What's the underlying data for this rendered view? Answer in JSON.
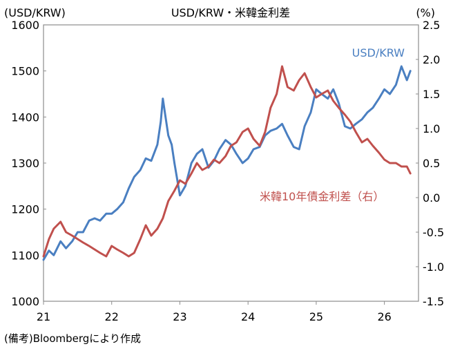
{
  "chart_data": {
    "type": "line",
    "title": "USD/KRW・米韓金利差",
    "left_axis_unit": "(USD/KRW)",
    "right_axis_unit": "(%)",
    "source_note": "(備考)Bloombergにより作成",
    "x_ticks": [
      "21",
      "22",
      "23",
      "24",
      "25",
      "26"
    ],
    "x_range": [
      2021.0,
      2026.5
    ],
    "y_left": {
      "range": [
        1000,
        1600
      ],
      "ticks": [
        "1000",
        "1100",
        "1200",
        "1300",
        "1400",
        "1500",
        "1600"
      ]
    },
    "y_right": {
      "range": [
        -1.5,
        2.5
      ],
      "ticks": [
        "-1.5",
        "-1.0",
        "-0.5",
        "0.0",
        "0.5",
        "1.0",
        "1.5",
        "2.0",
        "2.5"
      ]
    },
    "grid": false,
    "series": [
      {
        "name": "USD/KRW",
        "axis": "left",
        "color": "#4a7fc1",
        "x": [
          2021.0,
          2021.08,
          2021.15,
          2021.25,
          2021.33,
          2021.42,
          2021.5,
          2021.58,
          2021.67,
          2021.75,
          2021.83,
          2021.92,
          2022.0,
          2022.08,
          2022.17,
          2022.25,
          2022.33,
          2022.42,
          2022.5,
          2022.58,
          2022.67,
          2022.72,
          2022.75,
          2022.79,
          2022.83,
          2022.88,
          2022.92,
          2023.0,
          2023.08,
          2023.17,
          2023.25,
          2023.33,
          2023.42,
          2023.5,
          2023.58,
          2023.67,
          2023.75,
          2023.83,
          2023.92,
          2024.0,
          2024.08,
          2024.17,
          2024.25,
          2024.33,
          2024.42,
          2024.5,
          2024.58,
          2024.67,
          2024.75,
          2024.83,
          2024.92,
          2025.0,
          2025.08,
          2025.17,
          2025.25,
          2025.33,
          2025.42,
          2025.5,
          2025.58,
          2025.67,
          2025.75,
          2025.83,
          2025.92,
          2026.0,
          2026.08,
          2026.17,
          2026.25,
          2026.33,
          2026.38
        ],
        "values": [
          1090,
          1110,
          1100,
          1130,
          1115,
          1130,
          1150,
          1150,
          1175,
          1180,
          1175,
          1190,
          1190,
          1200,
          1215,
          1245,
          1270,
          1285,
          1310,
          1305,
          1340,
          1390,
          1440,
          1400,
          1360,
          1340,
          1300,
          1230,
          1250,
          1300,
          1320,
          1330,
          1290,
          1305,
          1330,
          1350,
          1340,
          1320,
          1300,
          1310,
          1330,
          1335,
          1360,
          1370,
          1375,
          1385,
          1360,
          1335,
          1330,
          1380,
          1410,
          1460,
          1450,
          1440,
          1460,
          1430,
          1380,
          1375,
          1385,
          1395,
          1410,
          1420,
          1440,
          1460,
          1450,
          1470,
          1510,
          1480,
          1500
        ]
      },
      {
        "name": "米韓10年債金利差（右）",
        "axis": "right",
        "color": "#c0504d",
        "x": [
          2021.0,
          2021.08,
          2021.15,
          2021.25,
          2021.33,
          2021.42,
          2021.5,
          2021.58,
          2021.67,
          2021.75,
          2021.83,
          2021.92,
          2022.0,
          2022.08,
          2022.17,
          2022.25,
          2022.33,
          2022.42,
          2022.5,
          2022.58,
          2022.67,
          2022.75,
          2022.83,
          2022.92,
          2023.0,
          2023.08,
          2023.17,
          2023.25,
          2023.33,
          2023.42,
          2023.5,
          2023.58,
          2023.67,
          2023.75,
          2023.83,
          2023.92,
          2024.0,
          2024.08,
          2024.17,
          2024.25,
          2024.33,
          2024.42,
          2024.5,
          2024.58,
          2024.67,
          2024.75,
          2024.83,
          2024.92,
          2025.0,
          2025.08,
          2025.17,
          2025.25,
          2025.33,
          2025.42,
          2025.5,
          2025.58,
          2025.67,
          2025.75,
          2025.83,
          2025.92,
          2026.0,
          2026.08,
          2026.17,
          2026.25,
          2026.33,
          2026.38
        ],
        "values": [
          -0.85,
          -0.6,
          -0.45,
          -0.35,
          -0.5,
          -0.55,
          -0.6,
          -0.65,
          -0.7,
          -0.75,
          -0.8,
          -0.85,
          -0.7,
          -0.75,
          -0.8,
          -0.85,
          -0.8,
          -0.6,
          -0.4,
          -0.55,
          -0.45,
          -0.3,
          -0.05,
          0.1,
          0.25,
          0.2,
          0.35,
          0.5,
          0.4,
          0.45,
          0.55,
          0.5,
          0.6,
          0.75,
          0.8,
          0.95,
          1.0,
          0.85,
          0.75,
          0.95,
          1.3,
          1.5,
          1.9,
          1.6,
          1.55,
          1.7,
          1.8,
          1.6,
          1.45,
          1.5,
          1.55,
          1.4,
          1.3,
          1.2,
          1.1,
          0.95,
          0.8,
          0.85,
          0.75,
          0.65,
          0.55,
          0.5,
          0.5,
          0.45,
          0.45,
          0.35
        ]
      }
    ],
    "series_labels": [
      {
        "text": "USD/KRW",
        "series": 0
      },
      {
        "text": "米韓10年債金利差（右）",
        "series": 1
      }
    ]
  }
}
